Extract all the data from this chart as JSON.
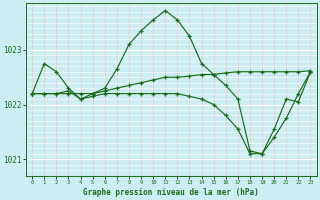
{
  "title": "Graphe pression niveau de la mer (hPa)",
  "bg_color": "#cceef2",
  "grid_color_pink": "#f0c8c8",
  "grid_color_white": "#ffffff",
  "line_color": "#1a6b1a",
  "xlim": [
    -0.5,
    23.5
  ],
  "ylim": [
    1020.7,
    1023.85
  ],
  "yticks": [
    1021,
    1022,
    1023
  ],
  "xticks": [
    0,
    1,
    2,
    3,
    4,
    5,
    6,
    7,
    8,
    9,
    10,
    11,
    12,
    13,
    14,
    15,
    16,
    17,
    18,
    19,
    20,
    21,
    22,
    23
  ],
  "series": [
    {
      "x": [
        0,
        1,
        2,
        3,
        4,
        5,
        6,
        7,
        8,
        9,
        10,
        11,
        12,
        13,
        14,
        15,
        16,
        17,
        18,
        19,
        20,
        21,
        22,
        23
      ],
      "y": [
        1022.2,
        1022.2,
        1022.2,
        1022.2,
        1022.2,
        1022.2,
        1022.25,
        1022.3,
        1022.35,
        1022.4,
        1022.45,
        1022.5,
        1022.5,
        1022.52,
        1022.55,
        1022.55,
        1022.58,
        1022.6,
        1022.6,
        1022.6,
        1022.6,
        1022.6,
        1022.6,
        1022.62
      ]
    },
    {
      "x": [
        0,
        1,
        2,
        3,
        4,
        5,
        6,
        7,
        8,
        9,
        10,
        11,
        12,
        13,
        14,
        15,
        16,
        17,
        18,
        19,
        20,
        21,
        22,
        23
      ],
      "y": [
        1022.2,
        1022.75,
        1022.6,
        1022.3,
        1022.1,
        1022.2,
        1022.3,
        1022.65,
        1023.1,
        1023.35,
        1023.55,
        1023.72,
        1023.55,
        1023.25,
        1022.75,
        1022.55,
        1022.35,
        1022.1,
        1021.15,
        1021.1,
        1021.55,
        1022.1,
        1022.05,
        1022.6
      ]
    },
    {
      "x": [
        0,
        1,
        2,
        3,
        4,
        5,
        6,
        7,
        8,
        9,
        10,
        11,
        12,
        13,
        14,
        15,
        16,
        17,
        18,
        19,
        20,
        21,
        22,
        23
      ],
      "y": [
        1022.2,
        1022.2,
        1022.2,
        1022.25,
        1022.1,
        1022.15,
        1022.2,
        1022.2,
        1022.2,
        1022.2,
        1022.2,
        1022.2,
        1022.2,
        1022.15,
        1022.1,
        1022.0,
        1021.8,
        1021.55,
        1021.1,
        1021.1,
        1021.4,
        1021.75,
        1022.2,
        1022.6
      ]
    }
  ]
}
